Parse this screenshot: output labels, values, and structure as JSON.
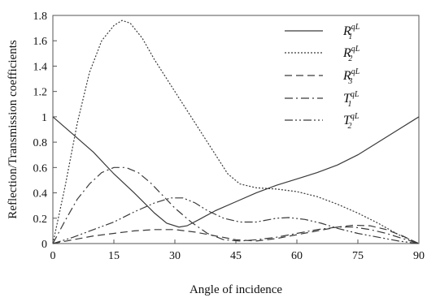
{
  "chart_data": {
    "type": "line",
    "xlabel": "Angle of incidence",
    "ylabel": "Reflection/Transmission  coefficients",
    "xlim": [
      0,
      90
    ],
    "ylim": [
      0,
      1.8
    ],
    "xticks": [
      "0",
      "15",
      "30",
      "45",
      "60",
      "75",
      "90"
    ],
    "yticks": [
      "0",
      "0.2",
      "0.4",
      "0.6",
      "0.8",
      "1",
      "1.2",
      "1.4",
      "1.6",
      "1.8"
    ],
    "grid": false,
    "legend_position": "top-right",
    "series": [
      {
        "name": "R1qL",
        "symbol": "R",
        "sub": "1",
        "sup": "qL",
        "dash": "solid",
        "points": [
          [
            0,
            1.0
          ],
          [
            5,
            0.86
          ],
          [
            10,
            0.72
          ],
          [
            15,
            0.55
          ],
          [
            20,
            0.4
          ],
          [
            25,
            0.24
          ],
          [
            28,
            0.16
          ],
          [
            31,
            0.13
          ],
          [
            33,
            0.14
          ],
          [
            36,
            0.19
          ],
          [
            40,
            0.26
          ],
          [
            45,
            0.33
          ],
          [
            50,
            0.4
          ],
          [
            55,
            0.46
          ],
          [
            60,
            0.51
          ],
          [
            65,
            0.56
          ],
          [
            70,
            0.62
          ],
          [
            75,
            0.7
          ],
          [
            80,
            0.8
          ],
          [
            85,
            0.9
          ],
          [
            90,
            1.0
          ]
        ]
      },
      {
        "name": "R2qL",
        "symbol": "R",
        "sub": "2",
        "sup": "qL",
        "dash": "dotted",
        "points": [
          [
            0,
            0.0
          ],
          [
            3,
            0.45
          ],
          [
            6,
            0.95
          ],
          [
            9,
            1.35
          ],
          [
            12,
            1.6
          ],
          [
            15,
            1.72
          ],
          [
            17,
            1.76
          ],
          [
            19,
            1.74
          ],
          [
            22,
            1.62
          ],
          [
            25,
            1.45
          ],
          [
            28,
            1.3
          ],
          [
            31,
            1.15
          ],
          [
            35,
            0.95
          ],
          [
            40,
            0.7
          ],
          [
            43,
            0.55
          ],
          [
            46,
            0.47
          ],
          [
            50,
            0.44
          ],
          [
            55,
            0.43
          ],
          [
            60,
            0.41
          ],
          [
            65,
            0.37
          ],
          [
            70,
            0.31
          ],
          [
            75,
            0.24
          ],
          [
            80,
            0.16
          ],
          [
            85,
            0.07
          ],
          [
            90,
            0.0
          ]
        ]
      },
      {
        "name": "R3qL",
        "symbol": "R",
        "sub": "3",
        "sup": "qL",
        "dash": "dashed",
        "points": [
          [
            0,
            0.0
          ],
          [
            5,
            0.03
          ],
          [
            10,
            0.06
          ],
          [
            15,
            0.08
          ],
          [
            20,
            0.1
          ],
          [
            25,
            0.11
          ],
          [
            30,
            0.11
          ],
          [
            35,
            0.09
          ],
          [
            40,
            0.06
          ],
          [
            45,
            0.03
          ],
          [
            50,
            0.02
          ],
          [
            55,
            0.04
          ],
          [
            60,
            0.07
          ],
          [
            65,
            0.1
          ],
          [
            70,
            0.13
          ],
          [
            74,
            0.145
          ],
          [
            78,
            0.14
          ],
          [
            82,
            0.11
          ],
          [
            86,
            0.06
          ],
          [
            90,
            0.0
          ]
        ]
      },
      {
        "name": "T1qL",
        "symbol": "T",
        "sub": "1",
        "sup": "qL",
        "dash": "dashdot",
        "points": [
          [
            0,
            0.0
          ],
          [
            3,
            0.18
          ],
          [
            6,
            0.35
          ],
          [
            9,
            0.47
          ],
          [
            12,
            0.56
          ],
          [
            15,
            0.6
          ],
          [
            18,
            0.6
          ],
          [
            21,
            0.56
          ],
          [
            24,
            0.48
          ],
          [
            27,
            0.38
          ],
          [
            30,
            0.28
          ],
          [
            34,
            0.17
          ],
          [
            38,
            0.08
          ],
          [
            42,
            0.03
          ],
          [
            46,
            0.02
          ],
          [
            50,
            0.03
          ],
          [
            55,
            0.05
          ],
          [
            60,
            0.08
          ],
          [
            65,
            0.11
          ],
          [
            70,
            0.13
          ],
          [
            74,
            0.13
          ],
          [
            78,
            0.11
          ],
          [
            82,
            0.08
          ],
          [
            86,
            0.04
          ],
          [
            90,
            0.0
          ]
        ]
      },
      {
        "name": "T2qL",
        "symbol": "T",
        "sub": "2",
        "sup": "qL",
        "dash": "dashdotdot",
        "points": [
          [
            0,
            0.0
          ],
          [
            5,
            0.05
          ],
          [
            10,
            0.11
          ],
          [
            15,
            0.17
          ],
          [
            20,
            0.25
          ],
          [
            25,
            0.32
          ],
          [
            29,
            0.36
          ],
          [
            32,
            0.36
          ],
          [
            35,
            0.32
          ],
          [
            38,
            0.26
          ],
          [
            42,
            0.2
          ],
          [
            46,
            0.17
          ],
          [
            50,
            0.17
          ],
          [
            55,
            0.2
          ],
          [
            58,
            0.205
          ],
          [
            62,
            0.19
          ],
          [
            66,
            0.16
          ],
          [
            70,
            0.12
          ],
          [
            75,
            0.08
          ],
          [
            80,
            0.05
          ],
          [
            85,
            0.02
          ],
          [
            90,
            0.0
          ]
        ]
      }
    ]
  }
}
